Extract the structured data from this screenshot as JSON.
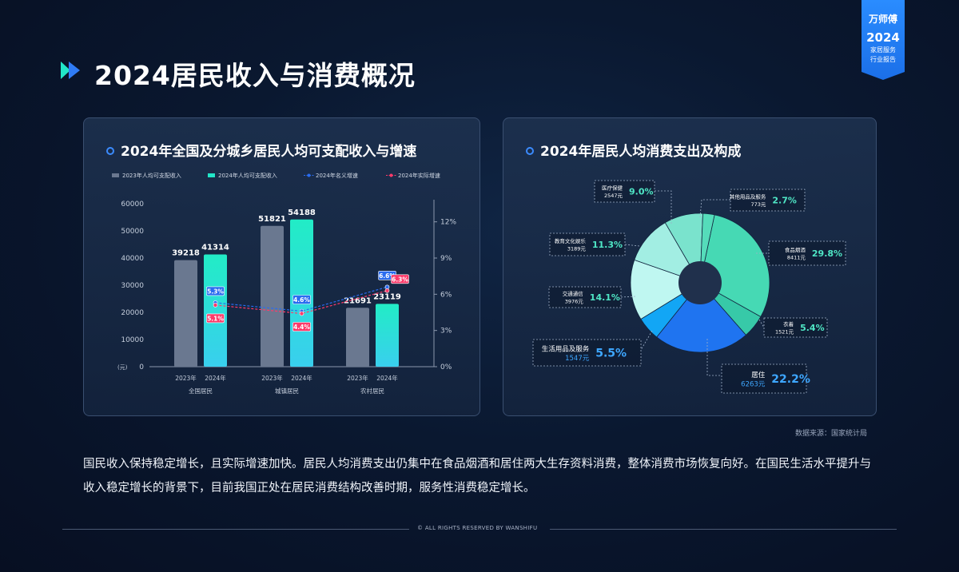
{
  "header": {
    "title": "2024居民收入与消费概况",
    "brand": {
      "name": "万师傅",
      "year": "2024",
      "line1": "家居服务",
      "line2": "行业报告"
    }
  },
  "panels": {
    "left_title": "2024年全国及分城乡居民人均可支配收入与增速",
    "right_title": "2024年居民人均消费支出及构成"
  },
  "chart_data": [
    {
      "type": "bar",
      "title": "2024年全国及分城乡居民人均可支配收入与增速",
      "legend": [
        "2023年人均可支配收入",
        "2024年人均可支配收入",
        "2024年名义增速",
        "2024年实际增速"
      ],
      "groups": [
        "全国居民",
        "城镇居民",
        "农村居民"
      ],
      "year_labels": [
        "2023年",
        "2024年"
      ],
      "y_unit": "(元)",
      "ylim": [
        0,
        60000
      ],
      "yticks": [
        "0",
        "10000",
        "20000",
        "30000",
        "40000",
        "50000",
        "60000"
      ],
      "y2lim": [
        0,
        13.5
      ],
      "y2ticks": [
        "0%",
        "3%",
        "6%",
        "9%",
        "12%"
      ],
      "series": [
        {
          "name": "2023年人均可支配收入",
          "type": "bar",
          "color": "#6a7890",
          "values": [
            39218,
            51821,
            21691
          ]
        },
        {
          "name": "2024年人均可支配收入",
          "type": "bar",
          "color": "#22e6c8",
          "values": [
            41314,
            54188,
            23119
          ]
        },
        {
          "name": "2024年名义增速",
          "type": "line",
          "color": "#2a6cf0",
          "values": [
            5.3,
            4.6,
            6.6
          ],
          "labels": [
            "5.3%",
            "4.6%",
            "6.6%"
          ]
        },
        {
          "name": "2024年实际增速",
          "type": "line",
          "color": "#ff3a6a",
          "values": [
            5.1,
            4.4,
            6.3
          ],
          "labels": [
            "5.1%",
            "4.4%",
            "6.3%"
          ]
        }
      ]
    },
    {
      "type": "pie",
      "title": "2024年居民人均消费支出及构成",
      "slices": [
        {
          "name": "食品烟酒",
          "amount": "8411元",
          "pct": 29.8,
          "label": "29.8%",
          "color": "#46d9b4"
        },
        {
          "name": "衣着",
          "amount": "1521元",
          "pct": 5.4,
          "label": "5.4%",
          "color": "#37c9a8"
        },
        {
          "name": "居住",
          "amount": "6263元",
          "pct": 22.2,
          "label": "22.2%",
          "color": "#1f74f0"
        },
        {
          "name": "生活用品及服务",
          "amount": "1547元",
          "pct": 5.5,
          "label": "5.5%",
          "color": "#12a6f5"
        },
        {
          "name": "交通通信",
          "amount": "3976元",
          "pct": 14.1,
          "label": "14.1%",
          "color": "#bff7f1"
        },
        {
          "name": "教育文化娱乐",
          "amount": "3189元",
          "pct": 11.3,
          "label": "11.3%",
          "color": "#a2eee3"
        },
        {
          "name": "医疗保健",
          "amount": "2547元",
          "pct": 9.0,
          "label": "9.0%",
          "color": "#7ae3cd"
        },
        {
          "name": "其他用品及服务",
          "amount": "773元",
          "pct": 2.7,
          "label": "2.7%",
          "color": "#55dcba"
        }
      ]
    }
  ],
  "source": "数据来源：国家统计局",
  "summary": "国民收入保持稳定增长，且实际增速加快。居民人均消费支出仍集中在食品烟酒和居住两大生存资料消费，整体消费市场恢复向好。在国民生活水平提升与收入稳定增长的背景下，目前我国正处在居民消费结构改善时期，服务性消费稳定增长。",
  "footer": "© ALL RIGHTS RESERVED BY WANSHIFU"
}
